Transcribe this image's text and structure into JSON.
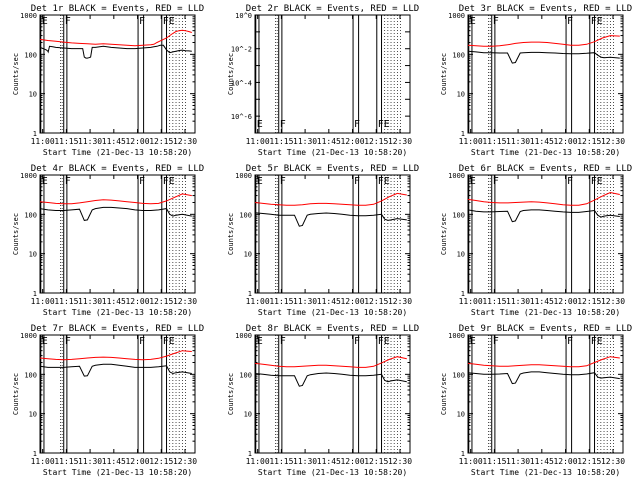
{
  "colors": {
    "events": "#000000",
    "lld": "#ff0000",
    "axis": "#000000"
  },
  "chart_data": [
    {
      "type": "line",
      "title": "Det 1r BLACK = Events, RED = LLD",
      "ylabel": "Counts/sec",
      "xlabel": "Start Time (21-Dec-13 10:58:20)",
      "ticks_x": [
        "11:00",
        "11:15",
        "11:30",
        "11:45",
        "12:00",
        "12:15",
        "12:30"
      ],
      "ticks_y": [
        "1",
        "10",
        "100",
        "1000"
      ],
      "scale_y": "log",
      "ylim": [
        1,
        1000
      ],
      "markers": [
        "E",
        "F",
        "F",
        "FE"
      ],
      "series": [
        {
          "key": "events",
          "x": [
            0,
            2,
            4,
            5,
            5.2,
            6,
            8,
            10,
            15,
            20,
            25,
            27,
            28,
            29,
            30,
            31,
            32,
            33,
            35,
            40,
            45,
            50,
            55,
            60,
            65,
            70,
            72,
            74,
            76,
            78,
            80,
            82,
            84,
            86,
            88,
            90,
            92,
            94,
            96
          ],
          "y": [
            150,
            140,
            130,
            120,
            115,
            160,
            155,
            150,
            145,
            140,
            140,
            140,
            85,
            80,
            80,
            82,
            85,
            150,
            150,
            160,
            150,
            145,
            140,
            140,
            145,
            150,
            155,
            160,
            170,
            170,
            130,
            110,
            115,
            120,
            125,
            128,
            124,
            122,
            120
          ]
        },
        {
          "key": "lld",
          "x": [
            0,
            5,
            10,
            15,
            20,
            25,
            30,
            35,
            40,
            45,
            50,
            55,
            60,
            65,
            70,
            72,
            74,
            76,
            78,
            80,
            82,
            84,
            86,
            88,
            90,
            92,
            94,
            96
          ],
          "y": [
            240,
            225,
            215,
            205,
            195,
            190,
            185,
            180,
            185,
            180,
            175,
            170,
            165,
            170,
            175,
            180,
            200,
            220,
            240,
            260,
            300,
            340,
            380,
            400,
            410,
            400,
            380,
            360
          ]
        }
      ]
    },
    {
      "type": "line",
      "title": "Det 2r BLACK = Events, RED = LLD",
      "ylabel": "Counts/sec",
      "xlabel": "Start Time (21-Dec-13 10:58:20)",
      "ticks_x": [
        "11:00",
        "11:15",
        "11:30",
        "11:45",
        "12:00",
        "12:15",
        "12:30"
      ],
      "ticks_y": [
        "10^0",
        "10^-2",
        "10^-4",
        "10^-6"
      ],
      "scale_y": "log",
      "ylim": [
        1e-07,
        1.0
      ],
      "markers": [
        "E",
        "F",
        "F",
        "FE"
      ],
      "series": []
    },
    {
      "type": "line",
      "title": "Det 3r BLACK = Events, RED = LLD",
      "ylabel": "Counts/sec",
      "xlabel": "Start Time (21-Dec-13 10:58:20)",
      "ticks_x": [
        "11:00",
        "11:15",
        "11:30",
        "11:45",
        "12:00",
        "12:15",
        "12:30"
      ],
      "ticks_y": [
        "1",
        "10",
        "100",
        "1000"
      ],
      "scale_y": "log",
      "ylim": [
        1,
        1000
      ],
      "markers": [
        "E",
        "F",
        "F",
        "FE"
      ],
      "series": [
        {
          "key": "events",
          "x": [
            0,
            5,
            10,
            15,
            20,
            25,
            28,
            30,
            33,
            35,
            40,
            45,
            50,
            55,
            60,
            65,
            70,
            75,
            80,
            82,
            84,
            86,
            90,
            96
          ],
          "y": [
            120,
            115,
            110,
            110,
            108,
            108,
            60,
            62,
            108,
            110,
            112,
            112,
            110,
            108,
            105,
            104,
            104,
            106,
            110,
            95,
            85,
            82,
            84,
            80
          ]
        },
        {
          "key": "lld",
          "x": [
            0,
            5,
            10,
            15,
            20,
            25,
            30,
            35,
            40,
            45,
            50,
            55,
            60,
            65,
            70,
            75,
            80,
            85,
            90,
            96
          ],
          "y": [
            170,
            165,
            160,
            160,
            165,
            175,
            190,
            200,
            205,
            205,
            200,
            190,
            180,
            170,
            170,
            180,
            210,
            260,
            300,
            290
          ]
        }
      ]
    },
    {
      "type": "line",
      "title": "Det 4r BLACK = Events, RED = LLD",
      "ylabel": "Counts/sec",
      "xlabel": "Start Time (21-Dec-13 10:58:20)",
      "ticks_x": [
        "11:00",
        "11:15",
        "11:30",
        "11:45",
        "12:00",
        "12:15",
        "12:30"
      ],
      "ticks_y": [
        "1",
        "10",
        "100",
        "1000"
      ],
      "scale_y": "log",
      "ylim": [
        1,
        1000
      ],
      "markers": [
        "E",
        "F",
        "F",
        "FE"
      ],
      "series": [
        {
          "key": "events",
          "x": [
            0,
            5,
            10,
            15,
            20,
            25,
            28,
            30,
            33,
            35,
            40,
            45,
            50,
            55,
            60,
            65,
            70,
            75,
            80,
            82,
            84,
            86,
            90,
            96
          ],
          "y": [
            140,
            130,
            125,
            125,
            130,
            135,
            70,
            72,
            130,
            140,
            150,
            150,
            145,
            140,
            130,
            125,
            125,
            130,
            140,
            100,
            90,
            95,
            100,
            90
          ]
        },
        {
          "key": "lld",
          "x": [
            0,
            5,
            10,
            15,
            20,
            25,
            30,
            35,
            40,
            45,
            50,
            55,
            60,
            65,
            70,
            75,
            80,
            85,
            90,
            96
          ],
          "y": [
            210,
            200,
            190,
            185,
            185,
            195,
            210,
            225,
            235,
            230,
            220,
            210,
            200,
            190,
            185,
            190,
            220,
            270,
            330,
            300
          ]
        }
      ]
    },
    {
      "type": "line",
      "title": "Det 5r BLACK = Events, RED = LLD",
      "ylabel": "Counts/sec",
      "xlabel": "Start Time (21-Dec-13 10:58:20)",
      "ticks_x": [
        "11:00",
        "11:15",
        "11:30",
        "11:45",
        "12:00",
        "12:15",
        "12:30"
      ],
      "ticks_y": [
        "1",
        "10",
        "100",
        "1000"
      ],
      "scale_y": "log",
      "ylim": [
        1,
        1000
      ],
      "markers": [
        "E",
        "F",
        "F",
        "FE"
      ],
      "series": [
        {
          "key": "events",
          "x": [
            0,
            5,
            10,
            15,
            20,
            25,
            28,
            30,
            33,
            35,
            40,
            45,
            50,
            55,
            60,
            65,
            70,
            75,
            80,
            82,
            84,
            86,
            90,
            96
          ],
          "y": [
            110,
            105,
            100,
            95,
            95,
            95,
            50,
            52,
            95,
            100,
            105,
            108,
            105,
            100,
            95,
            92,
            92,
            95,
            100,
            75,
            70,
            72,
            78,
            72
          ]
        },
        {
          "key": "lld",
          "x": [
            0,
            5,
            10,
            15,
            20,
            25,
            30,
            35,
            40,
            45,
            50,
            55,
            60,
            65,
            70,
            75,
            80,
            85,
            90,
            96
          ],
          "y": [
            200,
            190,
            180,
            175,
            170,
            170,
            175,
            185,
            190,
            190,
            185,
            180,
            175,
            170,
            170,
            180,
            220,
            280,
            340,
            310
          ]
        }
      ]
    },
    {
      "type": "line",
      "title": "Det 6r BLACK = Events, RED = LLD",
      "ylabel": "Counts/sec",
      "xlabel": "Start Time (21-Dec-13 10:58:20)",
      "ticks_x": [
        "11:00",
        "11:15",
        "11:30",
        "11:45",
        "12:00",
        "12:15",
        "12:30"
      ],
      "ticks_y": [
        "1",
        "10",
        "100",
        "1000"
      ],
      "scale_y": "log",
      "ylim": [
        1,
        1000
      ],
      "markers": [
        "E",
        "F",
        "F",
        "FE"
      ],
      "series": [
        {
          "key": "events",
          "x": [
            0,
            5,
            10,
            15,
            20,
            25,
            28,
            30,
            33,
            35,
            40,
            45,
            50,
            55,
            60,
            65,
            70,
            75,
            80,
            82,
            84,
            86,
            90,
            96
          ],
          "y": [
            130,
            120,
            115,
            115,
            118,
            120,
            65,
            68,
            118,
            125,
            130,
            130,
            125,
            120,
            115,
            112,
            112,
            118,
            125,
            95,
            85,
            90,
            95,
            88
          ]
        },
        {
          "key": "lld",
          "x": [
            0,
            5,
            10,
            15,
            20,
            25,
            30,
            35,
            40,
            45,
            50,
            55,
            60,
            65,
            70,
            75,
            80,
            85,
            90,
            96
          ],
          "y": [
            240,
            225,
            210,
            200,
            195,
            195,
            200,
            205,
            210,
            205,
            195,
            185,
            175,
            170,
            170,
            185,
            230,
            290,
            360,
            320
          ]
        }
      ]
    },
    {
      "type": "line",
      "title": "Det 7r BLACK = Events, RED = LLD",
      "ylabel": "Counts/sec",
      "xlabel": "Start Time (21-Dec-13 10:58:20)",
      "ticks_x": [
        "11:00",
        "11:15",
        "11:30",
        "11:45",
        "12:00",
        "12:15",
        "12:30"
      ],
      "ticks_y": [
        "1",
        "10",
        "100",
        "1000"
      ],
      "scale_y": "log",
      "ylim": [
        1,
        1000
      ],
      "markers": [
        "E",
        "F",
        "F",
        "FE"
      ],
      "series": [
        {
          "key": "events",
          "x": [
            0,
            5,
            10,
            15,
            20,
            25,
            28,
            30,
            33,
            35,
            40,
            45,
            50,
            55,
            60,
            65,
            70,
            75,
            80,
            82,
            84,
            86,
            90,
            96
          ],
          "y": [
            160,
            150,
            150,
            150,
            155,
            160,
            90,
            92,
            160,
            170,
            180,
            180,
            170,
            160,
            150,
            150,
            150,
            155,
            165,
            115,
            105,
            110,
            115,
            105
          ]
        },
        {
          "key": "lld",
          "x": [
            0,
            5,
            10,
            15,
            20,
            25,
            30,
            35,
            40,
            45,
            50,
            55,
            60,
            65,
            70,
            75,
            80,
            85,
            90,
            96
          ],
          "y": [
            260,
            250,
            240,
            235,
            240,
            250,
            260,
            270,
            275,
            270,
            260,
            250,
            240,
            235,
            240,
            255,
            290,
            340,
            400,
            380
          ]
        }
      ]
    },
    {
      "type": "line",
      "title": "Det 8r BLACK = Events, RED = LLD",
      "ylabel": "Counts/sec",
      "xlabel": "Start Time (21-Dec-13 10:58:20)",
      "ticks_x": [
        "11:00",
        "11:15",
        "11:30",
        "11:45",
        "12:00",
        "12:15",
        "12:30"
      ],
      "ticks_y": [
        "1",
        "10",
        "100",
        "1000"
      ],
      "scale_y": "log",
      "ylim": [
        1,
        1000
      ],
      "markers": [
        "E",
        "F",
        "F",
        "FE"
      ],
      "series": [
        {
          "key": "events",
          "x": [
            0,
            5,
            10,
            15,
            20,
            25,
            28,
            30,
            33,
            35,
            40,
            45,
            50,
            55,
            60,
            65,
            70,
            75,
            80,
            82,
            84,
            86,
            90,
            96
          ],
          "y": [
            105,
            100,
            95,
            92,
            92,
            92,
            50,
            52,
            92,
            98,
            105,
            108,
            105,
            100,
            95,
            92,
            92,
            95,
            100,
            70,
            65,
            68,
            72,
            65
          ]
        },
        {
          "key": "lld",
          "x": [
            0,
            5,
            10,
            15,
            20,
            25,
            30,
            35,
            40,
            45,
            50,
            55,
            60,
            65,
            70,
            75,
            80,
            85,
            90,
            96
          ],
          "y": [
            190,
            180,
            170,
            160,
            155,
            155,
            160,
            165,
            170,
            170,
            165,
            160,
            155,
            150,
            150,
            160,
            195,
            240,
            280,
            250
          ]
        }
      ]
    },
    {
      "type": "line",
      "title": "Det 9r BLACK = Events, RED = LLD",
      "ylabel": "Counts/sec",
      "xlabel": "Start Time (21-Dec-13 10:58:20)",
      "ticks_x": [
        "11:00",
        "11:15",
        "11:30",
        "11:45",
        "12:00",
        "12:15",
        "12:30"
      ],
      "ticks_y": [
        "1",
        "10",
        "100",
        "1000"
      ],
      "scale_y": "log",
      "ylim": [
        1,
        1000
      ],
      "markers": [
        "E",
        "F",
        "F",
        "FE"
      ],
      "series": [
        {
          "key": "events",
          "x": [
            0,
            5,
            10,
            15,
            20,
            25,
            28,
            30,
            33,
            35,
            40,
            45,
            50,
            55,
            60,
            65,
            70,
            75,
            80,
            82,
            84,
            86,
            90,
            96
          ],
          "y": [
            110,
            105,
            100,
            100,
            102,
            105,
            58,
            60,
            102,
            108,
            115,
            115,
            110,
            105,
            100,
            98,
            98,
            102,
            110,
            85,
            80,
            82,
            85,
            78
          ]
        },
        {
          "key": "lld",
          "x": [
            0,
            5,
            10,
            15,
            20,
            25,
            30,
            35,
            40,
            45,
            50,
            55,
            60,
            65,
            70,
            75,
            80,
            85,
            90,
            96
          ],
          "y": [
            190,
            180,
            170,
            165,
            160,
            160,
            165,
            170,
            175,
            175,
            170,
            165,
            160,
            155,
            155,
            165,
            200,
            240,
            280,
            260
          ]
        }
      ]
    }
  ]
}
